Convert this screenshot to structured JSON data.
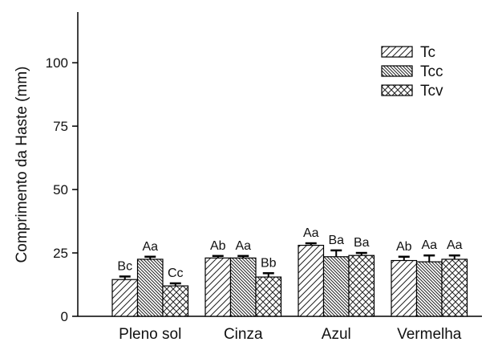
{
  "chart_data": {
    "type": "bar",
    "title": "",
    "xlabel": "",
    "ylabel": "Comprimento da Haste (mm)",
    "ylim": [
      0,
      120
    ],
    "yticks": [
      "0",
      "25",
      "50",
      "75",
      "100"
    ],
    "categories": [
      "Pleno sol",
      "Cinza",
      "Azul",
      "Vermelha"
    ],
    "legend_position": "top-right",
    "grid": false,
    "series": [
      {
        "name": "Tc",
        "pattern": "diagonal-forward",
        "values": [
          14.5,
          23,
          28,
          22
        ],
        "errors": [
          1.2,
          0.8,
          0.8,
          1.5
        ],
        "labels": [
          "Bc",
          "Ab",
          "Aa",
          "Ab"
        ]
      },
      {
        "name": "Tcc",
        "pattern": "diagonal-backward-dense",
        "values": [
          22.5,
          23,
          23.5,
          21.5
        ],
        "errors": [
          1.0,
          0.8,
          2.5,
          2.5
        ],
        "labels": [
          "Aa",
          "Aa",
          "Ba",
          "Aa"
        ]
      },
      {
        "name": "Tcv",
        "pattern": "crosshatch",
        "values": [
          12,
          15.5,
          24,
          22.5
        ],
        "errors": [
          1.0,
          1.5,
          1.0,
          1.5
        ],
        "labels": [
          "Cc",
          "Bb",
          "Ba",
          "Aa"
        ]
      }
    ]
  }
}
